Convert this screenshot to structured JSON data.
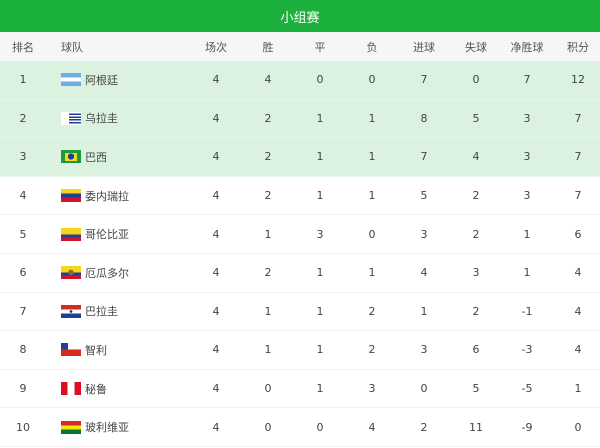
{
  "title": "小组赛",
  "headers": {
    "rank": "排名",
    "team": "球队",
    "played": "场次",
    "won": "胜",
    "drawn": "平",
    "lost": "负",
    "gf": "进球",
    "ga": "失球",
    "gd": "净胜球",
    "pts": "积分"
  },
  "highlight_color": "#dcf2e1",
  "accent": "#1cb03c",
  "rows": [
    {
      "rank": "1",
      "team": "阿根廷",
      "flag": "argentina-flag",
      "played": "4",
      "won": "4",
      "drawn": "0",
      "lost": "0",
      "gf": "7",
      "ga": "0",
      "gd": "7",
      "pts": "12"
    },
    {
      "rank": "2",
      "team": "乌拉圭",
      "flag": "uruguay-flag",
      "played": "4",
      "won": "2",
      "drawn": "1",
      "lost": "1",
      "gf": "8",
      "ga": "5",
      "gd": "3",
      "pts": "7"
    },
    {
      "rank": "3",
      "team": "巴西",
      "flag": "brazil-flag",
      "played": "4",
      "won": "2",
      "drawn": "1",
      "lost": "1",
      "gf": "7",
      "ga": "4",
      "gd": "3",
      "pts": "7"
    },
    {
      "rank": "4",
      "team": "委内瑞拉",
      "flag": "venezuela-flag",
      "played": "4",
      "won": "2",
      "drawn": "1",
      "lost": "1",
      "gf": "5",
      "ga": "2",
      "gd": "3",
      "pts": "7"
    },
    {
      "rank": "5",
      "team": "哥伦比亚",
      "flag": "colombia-flag",
      "played": "4",
      "won": "1",
      "drawn": "3",
      "lost": "0",
      "gf": "3",
      "ga": "2",
      "gd": "1",
      "pts": "6"
    },
    {
      "rank": "6",
      "team": "厄瓜多尔",
      "flag": "ecuador-flag",
      "played": "4",
      "won": "2",
      "drawn": "1",
      "lost": "1",
      "gf": "4",
      "ga": "3",
      "gd": "1",
      "pts": "4"
    },
    {
      "rank": "7",
      "team": "巴拉圭",
      "flag": "paraguay-flag",
      "played": "4",
      "won": "1",
      "drawn": "1",
      "lost": "2",
      "gf": "1",
      "ga": "2",
      "gd": "-1",
      "pts": "4"
    },
    {
      "rank": "8",
      "team": "智利",
      "flag": "chile-flag",
      "played": "4",
      "won": "1",
      "drawn": "1",
      "lost": "2",
      "gf": "3",
      "ga": "6",
      "gd": "-3",
      "pts": "4"
    },
    {
      "rank": "9",
      "team": "秘鲁",
      "flag": "peru-flag",
      "played": "4",
      "won": "0",
      "drawn": "1",
      "lost": "3",
      "gf": "0",
      "ga": "5",
      "gd": "-5",
      "pts": "1"
    },
    {
      "rank": "10",
      "team": "玻利维亚",
      "flag": "bolivia-flag",
      "played": "4",
      "won": "0",
      "drawn": "0",
      "lost": "4",
      "gf": "2",
      "ga": "11",
      "gd": "-9",
      "pts": "0"
    }
  ]
}
